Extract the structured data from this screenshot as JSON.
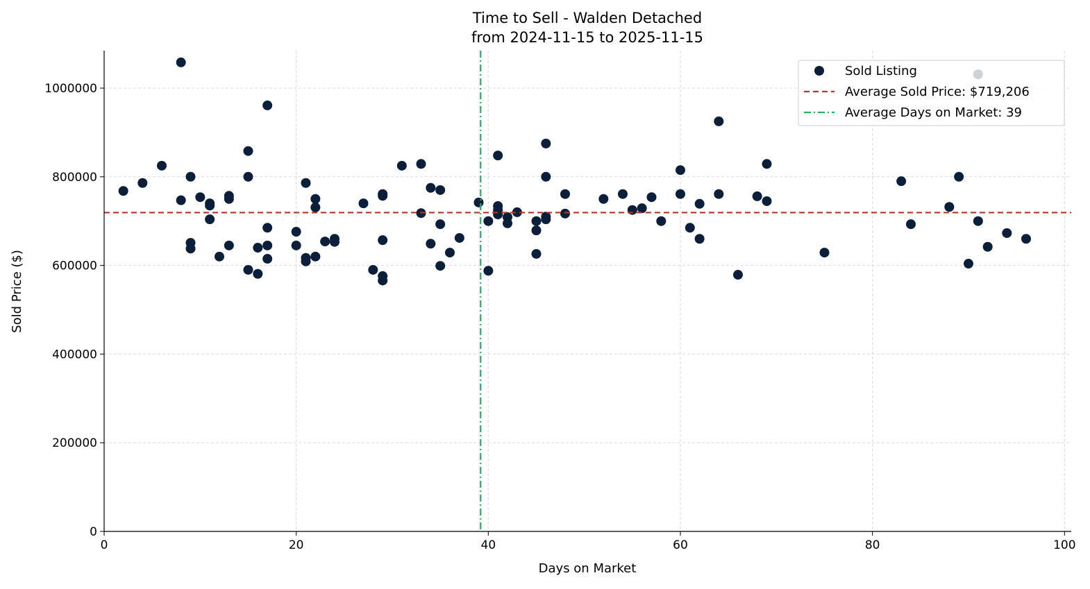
{
  "chart_data": {
    "type": "scatter",
    "title": "Time to Sell - Walden Detached",
    "subtitle": "from 2024-11-15 to 2025-11-15",
    "xlabel": "Days on Market",
    "ylabel": "Sold Price ($)",
    "xlim": [
      0,
      100.7
    ],
    "ylim": [
      0,
      1084500
    ],
    "xticks": [
      0,
      20,
      40,
      60,
      80,
      100
    ],
    "yticks": [
      0,
      200000,
      400000,
      600000,
      800000,
      1000000
    ],
    "grid": true,
    "legend_placement": "top-right",
    "colors": {
      "points": "#0b1f3a",
      "avg_price": "#b5342a",
      "avg_days": "#27ae60",
      "grid": "#d9d9d9"
    },
    "legend": [
      "Sold Listing",
      "Average Sold Price: $719,206",
      "Average Days on Market: 39"
    ],
    "avg_price": 719206,
    "avg_days": 39.2,
    "points": [
      [
        2,
        768000
      ],
      [
        4,
        786000
      ],
      [
        6,
        825000
      ],
      [
        8,
        1058000
      ],
      [
        8,
        747000
      ],
      [
        9,
        800000
      ],
      [
        9,
        651000
      ],
      [
        9,
        638000
      ],
      [
        10,
        754000
      ],
      [
        11,
        740000
      ],
      [
        11,
        735000
      ],
      [
        11,
        704000
      ],
      [
        12,
        620000
      ],
      [
        13,
        757000
      ],
      [
        13,
        750000
      ],
      [
        13,
        645000
      ],
      [
        15,
        858000
      ],
      [
        15,
        800000
      ],
      [
        15,
        590000
      ],
      [
        16,
        640000
      ],
      [
        16,
        581000
      ],
      [
        17,
        961000
      ],
      [
        17,
        685000
      ],
      [
        17,
        645000
      ],
      [
        17,
        615000
      ],
      [
        20,
        676000
      ],
      [
        20,
        645000
      ],
      [
        21,
        786000
      ],
      [
        21,
        617000
      ],
      [
        21,
        609000
      ],
      [
        22,
        750000
      ],
      [
        22,
        731000
      ],
      [
        22,
        620000
      ],
      [
        23,
        654000
      ],
      [
        24,
        660000
      ],
      [
        24,
        653000
      ],
      [
        27,
        740000
      ],
      [
        28,
        590000
      ],
      [
        29,
        761000
      ],
      [
        29,
        757000
      ],
      [
        29,
        657000
      ],
      [
        29,
        576000
      ],
      [
        29,
        566000
      ],
      [
        31,
        825000
      ],
      [
        33,
        829000
      ],
      [
        33,
        718000
      ],
      [
        34,
        775000
      ],
      [
        34,
        649000
      ],
      [
        35,
        770000
      ],
      [
        35,
        693000
      ],
      [
        35,
        599000
      ],
      [
        36,
        629000
      ],
      [
        37,
        662000
      ],
      [
        39,
        742000
      ],
      [
        40,
        700000
      ],
      [
        40,
        588000
      ],
      [
        41,
        848000
      ],
      [
        41,
        734000
      ],
      [
        41,
        725000
      ],
      [
        41,
        715000
      ],
      [
        42,
        709000
      ],
      [
        42,
        695000
      ],
      [
        43,
        720000
      ],
      [
        45,
        700000
      ],
      [
        45,
        679000
      ],
      [
        45,
        626000
      ],
      [
        46,
        875000
      ],
      [
        46,
        800000
      ],
      [
        46,
        710000
      ],
      [
        46,
        704000
      ],
      [
        48,
        761000
      ],
      [
        48,
        717000
      ],
      [
        52,
        750000
      ],
      [
        54,
        761000
      ],
      [
        55,
        725000
      ],
      [
        56,
        729000
      ],
      [
        57,
        754000
      ],
      [
        58,
        700000
      ],
      [
        60,
        815000
      ],
      [
        60,
        761000
      ],
      [
        61,
        685000
      ],
      [
        62,
        739000
      ],
      [
        62,
        660000
      ],
      [
        64,
        925000
      ],
      [
        64,
        761000
      ],
      [
        66,
        579000
      ],
      [
        68,
        756000
      ],
      [
        69,
        829000
      ],
      [
        69,
        745000
      ],
      [
        75,
        629000
      ],
      [
        83,
        790000
      ],
      [
        84,
        693000
      ],
      [
        88,
        732000
      ],
      [
        89,
        800000
      ],
      [
        90,
        604000
      ],
      [
        91,
        700000
      ],
      [
        91,
        1031000
      ],
      [
        92,
        642000
      ],
      [
        94,
        673000
      ],
      [
        96,
        660000
      ]
    ]
  }
}
